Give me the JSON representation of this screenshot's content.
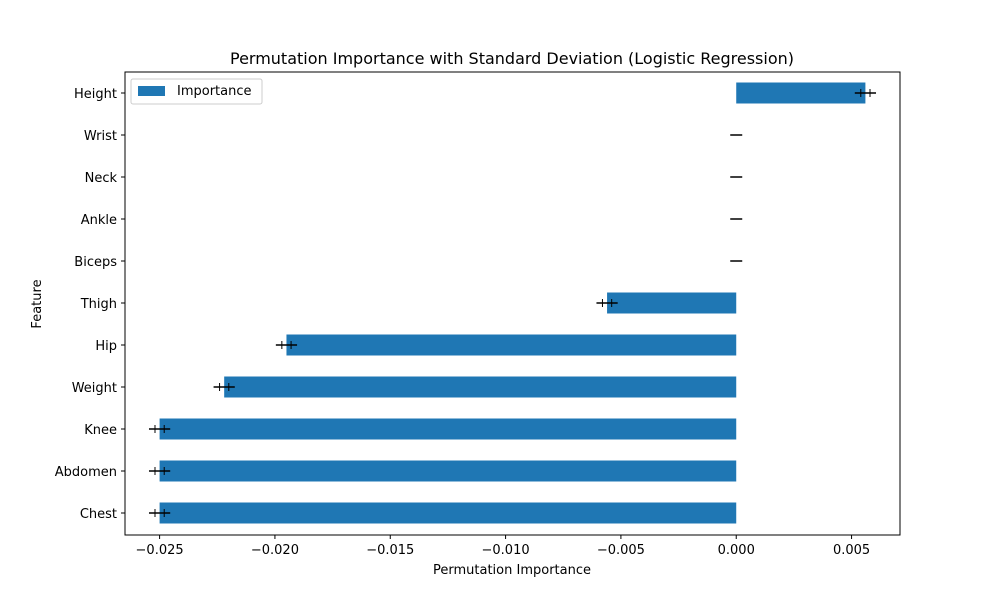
{
  "chart_data": {
    "type": "bar",
    "orientation": "horizontal",
    "title": "Permutation Importance with Standard Deviation (Logistic Regression)",
    "xlabel": "Permutation Importance",
    "ylabel": "Feature",
    "categories": [
      "Height",
      "Wrist",
      "Neck",
      "Ankle",
      "Biceps",
      "Thigh",
      "Hip",
      "Weight",
      "Knee",
      "Abdomen",
      "Chest"
    ],
    "series": [
      {
        "name": "Importance",
        "values": [
          0.0056,
          0.0,
          0.0,
          0.0,
          0.0,
          -0.0056,
          -0.0195,
          -0.0222,
          -0.025,
          -0.025,
          -0.025
        ],
        "errors": [
          0.0002,
          0.0,
          0.0,
          0.0,
          0.0,
          0.0002,
          0.0002,
          0.0002,
          0.0002,
          0.0002,
          0.0002
        ]
      }
    ],
    "xlim": [
      -0.0265,
      0.0071
    ],
    "xticks": [
      -0.025,
      -0.02,
      -0.015,
      -0.01,
      -0.005,
      0.0,
      0.005
    ],
    "xtick_labels": [
      "−0.025",
      "−0.020",
      "−0.015",
      "−0.010",
      "−0.005",
      "0.000",
      "0.005"
    ],
    "grid": false,
    "legend_position": "top-left",
    "bar_color": "#1f77b4",
    "error_color": "#000000"
  }
}
